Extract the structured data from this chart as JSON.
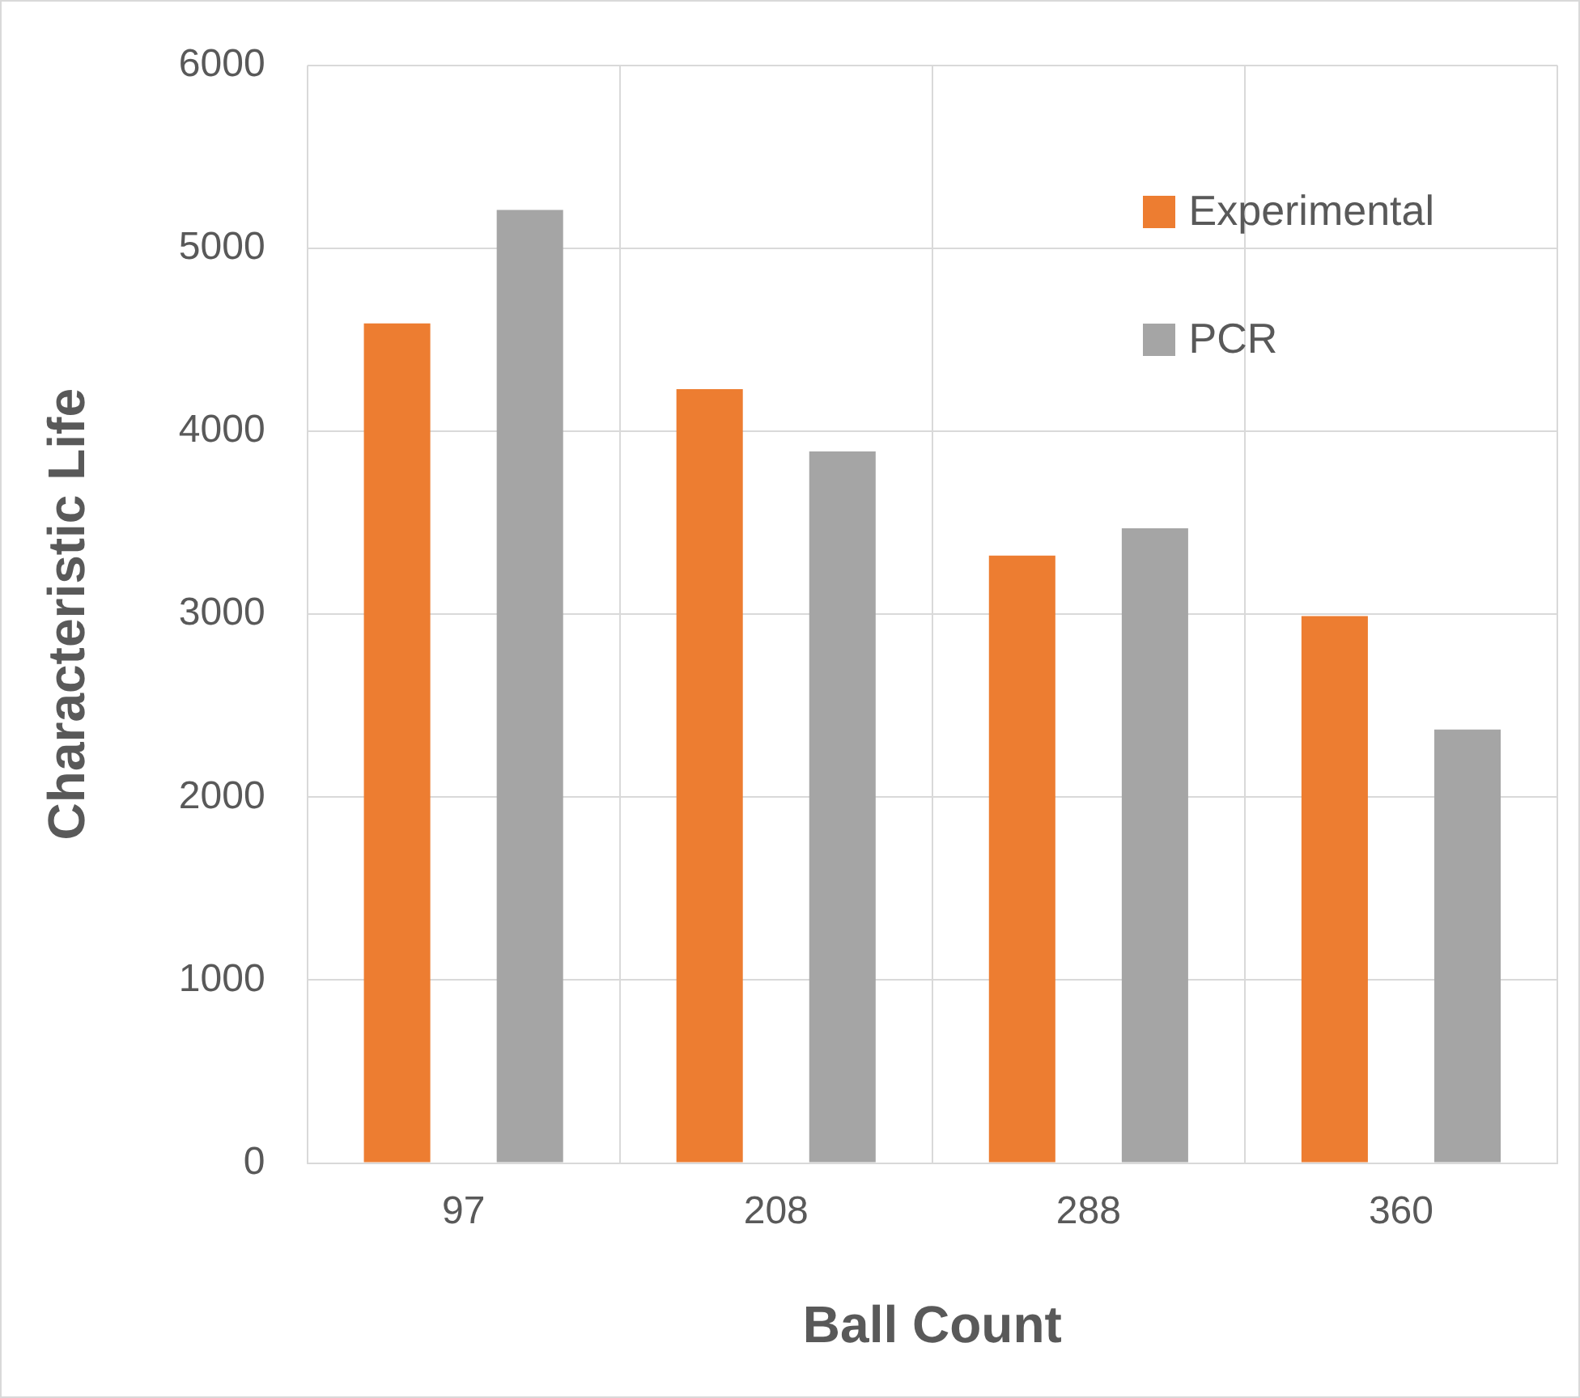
{
  "chart_data": {
    "type": "bar",
    "xlabel": "Ball Count",
    "ylabel": "Characteristic Life",
    "categories": [
      "97",
      "208",
      "288",
      "360"
    ],
    "series": [
      {
        "name": "Experimental",
        "color": "#ed7d31",
        "values": [
          4590,
          4230,
          3320,
          2990
        ]
      },
      {
        "name": "PCR",
        "color": "#a5a5a5",
        "values": [
          5210,
          3890,
          3470,
          2370
        ]
      }
    ],
    "ylim": [
      0,
      6000
    ],
    "yticks": [
      0,
      1000,
      2000,
      3000,
      4000,
      5000,
      6000
    ],
    "grid": true,
    "legend": "top right"
  }
}
